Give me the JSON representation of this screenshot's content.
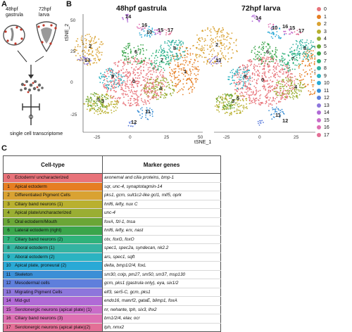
{
  "panels": {
    "a": "A",
    "b": "B",
    "c": "C"
  },
  "schematic": {
    "gastrula_label": "48hpf\ngastrula",
    "larva_label": "72hpf\nlarva",
    "bottom_label": "single cell transcriptome"
  },
  "tsne": {
    "left_title": "48hpf gastrula",
    "right_title": "72hpf larva",
    "ylabel": "tSNE_2",
    "xlabel": "tSNE_1",
    "xticks": [
      "-25",
      "0",
      "25",
      "50"
    ],
    "yticks": [
      "50",
      "25",
      "0",
      "-25"
    ],
    "left_labels": [
      "14",
      "16",
      "15",
      "17",
      "2",
      "13",
      "3",
      "4",
      "5",
      "6",
      "8",
      "7",
      "1",
      "0",
      "9",
      "10",
      "11",
      "12"
    ],
    "right_labels": [
      "14",
      "10",
      "16",
      "15",
      "17",
      "2",
      "13",
      "3",
      "6",
      "8",
      "7",
      "1",
      "0",
      "4",
      "9",
      "5",
      "12",
      "11"
    ]
  },
  "legend": [
    "0",
    "1",
    "2",
    "3",
    "4",
    "5",
    "6",
    "7",
    "8",
    "9",
    "10",
    "11",
    "12",
    "13",
    "14",
    "15",
    "16",
    "17"
  ],
  "colors": [
    "#e8737a",
    "#e67e22",
    "#d9a232",
    "#b9b02f",
    "#9aae33",
    "#6aa636",
    "#3aa54b",
    "#2fb27a",
    "#34b3a1",
    "#2bb3c1",
    "#2aa9d6",
    "#3b8fd6",
    "#5f7fdc",
    "#8d76dc",
    "#b06ad6",
    "#c96cc8",
    "#de6fb2",
    "#e36f96"
  ],
  "table": {
    "header_type": "Cell-type",
    "header_markers": "Marker genes",
    "rows": [
      {
        "n": "0",
        "type": "Ectoderm/ uncharacterized",
        "markers": "axonemal and cilia proteins, bmp-1"
      },
      {
        "n": "1",
        "type": "Apical ectoderm",
        "markers": "sqr, unc-4, synaptotagmin-14"
      },
      {
        "n": "2",
        "type": "Differentiated Pigment Cells",
        "markers": "pks1, gcm, sult1c2-like gcl1, mif5, oprk"
      },
      {
        "n": "3",
        "type": "Ciliary band neurons (1)",
        "markers": "hnf6, lefty, nux C"
      },
      {
        "n": "4",
        "type": "Apical plate/uncharacterized",
        "markers": "unc-4"
      },
      {
        "n": "5",
        "type": "Oral ectoderm/Mouth",
        "markers": "foxA, fzl-1, tnsa"
      },
      {
        "n": "6",
        "type": "Lateral ectoderm (right)",
        "markers": "hnf6, lefty, erx, nast"
      },
      {
        "n": "7",
        "type": "Ciliary band neurons (2)",
        "markers": "otx, foxG, foxO"
      },
      {
        "n": "8",
        "type": "Aboral ectoderm (1)",
        "markers": "spec1, spec2a, syndecan, nk2.2"
      },
      {
        "n": "9",
        "type": "Aboral ectoderm (2)",
        "markers": "ars, spec1, sqft"
      },
      {
        "n": "10",
        "type": "Apical plate, proneural (2)",
        "markers": "delta, bmp1/2/4, foxL"
      },
      {
        "n": "11",
        "type": "Skeleton",
        "markers": "sm30, colp, pm27, sm50, sm37, msp130"
      },
      {
        "n": "12",
        "type": "Mesodermal cells",
        "markers": "gcm, pks1 (gastrula only), eya, six1/2"
      },
      {
        "n": "13",
        "type": "Migrating Pigment Cells",
        "markers": "elf3, ser5-C, gcm, pks1"
      },
      {
        "n": "14",
        "type": "Mid-gut",
        "markers": "endo16, manrf2, gataE, blimp1, foxA"
      },
      {
        "n": "15",
        "type": "Serotonergic neurons (apical plate) (1)",
        "markers": "nr, nehante, tph, six3, lhx2"
      },
      {
        "n": "16",
        "type": "Ciliary band neurons (3)",
        "markers": "brn1/2/4, elav, ocr"
      },
      {
        "n": "17",
        "type": "Serotonergic neurons (apical plate)(2)",
        "markers": "tph, nmx2"
      }
    ]
  }
}
